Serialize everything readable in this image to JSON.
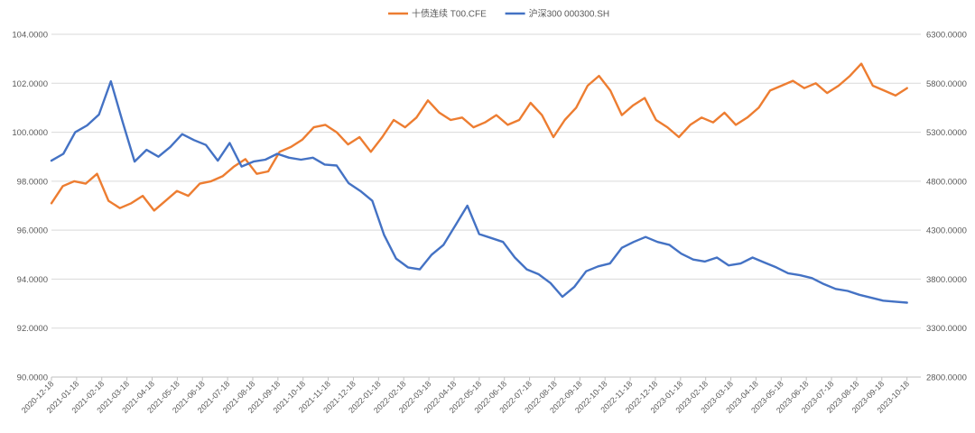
{
  "chart_data": {
    "type": "line",
    "title": "",
    "legend_position": "top",
    "grid": true,
    "x_labels": [
      "2020-12-18",
      "2021-01-18",
      "2021-02-18",
      "2021-03-18",
      "2021-04-18",
      "2021-05-18",
      "2021-06-18",
      "2021-07-18",
      "2021-08-18",
      "2021-09-18",
      "2021-10-18",
      "2021-11-18",
      "2021-12-18",
      "2022-01-18",
      "2022-02-18",
      "2022-03-18",
      "2022-04-18",
      "2022-05-18",
      "2022-06-18",
      "2022-07-18",
      "2022-08-18",
      "2022-09-18",
      "2022-10-18",
      "2022-11-18",
      "2022-12-18",
      "2023-01-18",
      "2023-02-18",
      "2023-03-18",
      "2023-04-18",
      "2023-05-18",
      "2023-06-18",
      "2023-07-18",
      "2023-08-18",
      "2023-09-18",
      "2023-10-18"
    ],
    "y_left": {
      "min": 90,
      "max": 104,
      "step": 2,
      "tick_labels": [
        "90.0000",
        "92.0000",
        "94.0000",
        "96.0000",
        "98.0000",
        "100.0000",
        "102.0000",
        "104.0000"
      ]
    },
    "y_right": {
      "min": 2800,
      "max": 6300,
      "step": 500,
      "tick_labels": [
        "2800.0000",
        "3300.0000",
        "3800.0000",
        "4300.0000",
        "4800.0000",
        "5300.0000",
        "5800.0000",
        "6300.0000"
      ]
    },
    "series": [
      {
        "name": "十债连续 T00.CFE",
        "color": "#ED7D31",
        "axis": "left",
        "values": [
          97.1,
          97.8,
          98.0,
          97.9,
          98.3,
          97.2,
          96.9,
          97.1,
          97.4,
          96.8,
          97.2,
          97.6,
          97.4,
          97.9,
          98.0,
          98.2,
          98.6,
          98.9,
          98.3,
          98.4,
          99.2,
          99.4,
          99.7,
          100.2,
          100.3,
          100.0,
          99.5,
          99.8,
          99.2,
          99.8,
          100.5,
          100.2,
          100.6,
          101.3,
          100.8,
          100.5,
          100.6,
          100.2,
          100.4,
          100.7,
          100.3,
          100.5,
          101.2,
          100.7,
          99.8,
          100.5,
          101.0,
          101.9,
          102.3,
          101.7,
          100.7,
          101.1,
          101.4,
          100.5,
          100.2,
          99.8,
          100.3,
          100.6,
          100.4,
          100.8,
          100.3,
          100.6,
          101.0,
          101.7,
          101.9,
          102.1,
          101.8,
          102.0,
          101.6,
          101.9,
          102.3,
          102.8,
          101.9,
          101.7,
          101.5,
          101.8
        ]
      },
      {
        "name": "沪深300 000300.SH",
        "color": "#4472C4",
        "axis": "right",
        "values": [
          5010,
          5080,
          5300,
          5370,
          5480,
          5820,
          5400,
          5000,
          5120,
          5050,
          5150,
          5280,
          5220,
          5170,
          5010,
          5190,
          4950,
          5000,
          5020,
          5080,
          5040,
          5020,
          5040,
          4970,
          4960,
          4780,
          4700,
          4600,
          4250,
          4010,
          3920,
          3900,
          4050,
          4150,
          4350,
          4550,
          4260,
          4220,
          4180,
          4020,
          3900,
          3850,
          3760,
          3620,
          3720,
          3880,
          3930,
          3960,
          4120,
          4180,
          4230,
          4180,
          4150,
          4060,
          4000,
          3980,
          4020,
          3940,
          3960,
          4020,
          3970,
          3920,
          3860,
          3840,
          3810,
          3750,
          3700,
          3680,
          3640,
          3610,
          3580,
          3570,
          3560
        ]
      }
    ]
  }
}
